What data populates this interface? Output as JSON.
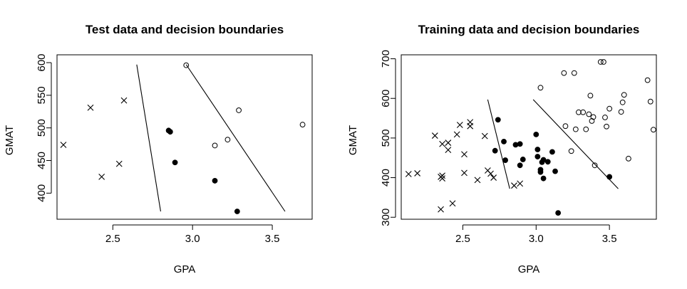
{
  "chart_data": [
    {
      "type": "scatter",
      "title": "Test data and decision boundaries",
      "xlabel": "GPA",
      "ylabel": "GMAT",
      "xlim": [
        2.15,
        3.75
      ],
      "ylim": [
        360,
        612
      ],
      "xticks": [
        2.5,
        3.0,
        3.5
      ],
      "yticks": [
        400,
        450,
        500,
        550,
        600
      ],
      "grid": false,
      "series": [
        {
          "marker": "x",
          "points": [
            [
              2.19,
              474
            ],
            [
              2.36,
              531
            ],
            [
              2.43,
              425
            ],
            [
              2.54,
              445
            ],
            [
              2.57,
              542
            ]
          ]
        },
        {
          "marker": "filled-circle",
          "points": [
            [
              2.85,
              496
            ],
            [
              2.86,
              494
            ],
            [
              2.89,
              447
            ],
            [
              3.14,
              419
            ],
            [
              3.28,
              372
            ]
          ]
        },
        {
          "marker": "open-circle",
          "points": [
            [
              2.96,
              596
            ],
            [
              3.14,
              473
            ],
            [
              3.22,
              482
            ],
            [
              3.29,
              527
            ],
            [
              3.69,
              505
            ]
          ]
        }
      ],
      "boundaries": [
        [
          [
            2.65,
            597
          ],
          [
            2.8,
            372
          ]
        ],
        [
          [
            2.96,
            597
          ],
          [
            3.58,
            372
          ]
        ]
      ]
    },
    {
      "type": "scatter",
      "title": "Training data and decision boundaries",
      "xlabel": "GPA",
      "ylabel": "GMAT",
      "xlim": [
        2.08,
        3.82
      ],
      "ylim": [
        295,
        710
      ],
      "xticks": [
        2.5,
        3.0,
        3.5
      ],
      "yticks": [
        300,
        400,
        500,
        600,
        700
      ],
      "grid": false,
      "series": [
        {
          "marker": "x",
          "points": [
            [
              2.13,
              409
            ],
            [
              2.19,
              411
            ],
            [
              2.31,
              506
            ],
            [
              2.35,
              320
            ],
            [
              2.35,
              402
            ],
            [
              2.36,
              485
            ],
            [
              2.36,
              405
            ],
            [
              2.36,
              398
            ],
            [
              2.4,
              488
            ],
            [
              2.4,
              470
            ],
            [
              2.43,
              335
            ],
            [
              2.46,
              509
            ],
            [
              2.48,
              533
            ],
            [
              2.51,
              412
            ],
            [
              2.51,
              459
            ],
            [
              2.55,
              540
            ],
            [
              2.55,
              530
            ],
            [
              2.6,
              394
            ],
            [
              2.65,
              505
            ],
            [
              2.67,
              418
            ],
            [
              2.69,
              410
            ],
            [
              2.71,
              400
            ],
            [
              2.85,
              380
            ],
            [
              2.89,
              385
            ]
          ]
        },
        {
          "marker": "filled-circle",
          "points": [
            [
              2.72,
              468
            ],
            [
              2.74,
              546
            ],
            [
              2.78,
              491
            ],
            [
              2.79,
              444
            ],
            [
              2.86,
              483
            ],
            [
              2.89,
              485
            ],
            [
              2.89,
              431
            ],
            [
              2.91,
              446
            ],
            [
              3.0,
              509
            ],
            [
              3.01,
              471
            ],
            [
              3.01,
              453
            ],
            [
              3.03,
              414
            ],
            [
              3.03,
              420
            ],
            [
              3.04,
              439
            ],
            [
              3.05,
              398
            ],
            [
              3.05,
              445
            ],
            [
              3.08,
              440
            ],
            [
              3.11,
              465
            ],
            [
              3.13,
              416
            ],
            [
              3.15,
              311
            ],
            [
              3.5,
              402
            ]
          ]
        },
        {
          "marker": "open-circle",
          "points": [
            [
              3.03,
              627
            ],
            [
              3.19,
              664
            ],
            [
              3.2,
              530
            ],
            [
              3.24,
              467
            ],
            [
              3.26,
              664
            ],
            [
              3.27,
              522
            ],
            [
              3.29,
              565
            ],
            [
              3.32,
              565
            ],
            [
              3.34,
              522
            ],
            [
              3.36,
              560
            ],
            [
              3.37,
              607
            ],
            [
              3.38,
              543
            ],
            [
              3.39,
              553
            ],
            [
              3.4,
              431
            ],
            [
              3.44,
              692
            ],
            [
              3.46,
              692
            ],
            [
              3.47,
              552
            ],
            [
              3.48,
              529
            ],
            [
              3.5,
              574
            ],
            [
              3.58,
              566
            ],
            [
              3.59,
              590
            ],
            [
              3.6,
              609
            ],
            [
              3.63,
              448
            ],
            [
              3.76,
              646
            ],
            [
              3.78,
              592
            ],
            [
              3.8,
              521
            ]
          ]
        }
      ],
      "boundaries": [
        [
          [
            2.67,
            597
          ],
          [
            2.82,
            372
          ]
        ],
        [
          [
            2.98,
            597
          ],
          [
            3.56,
            372
          ]
        ]
      ]
    }
  ]
}
